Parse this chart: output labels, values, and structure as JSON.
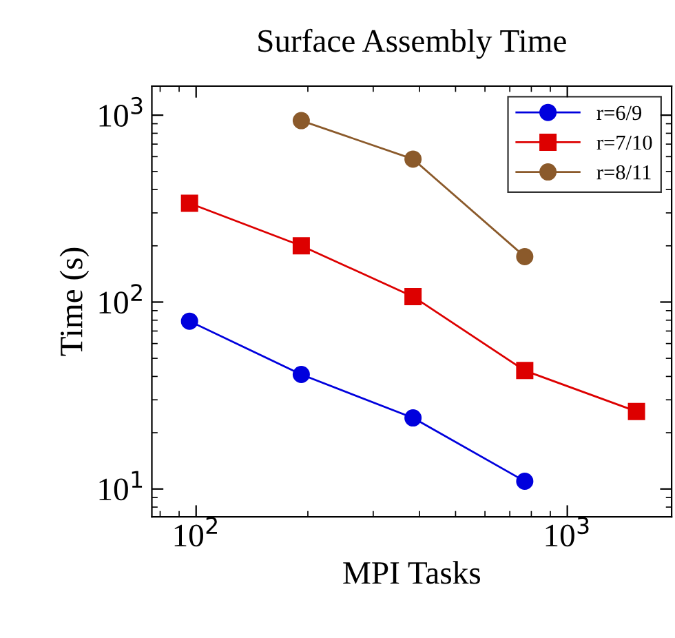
{
  "chart_data": {
    "type": "line",
    "title": "Surface Assembly Time",
    "xlabel": "MPI Tasks",
    "ylabel": "Time (s)",
    "log": "xy",
    "xlim": [
      76,
      1910
    ],
    "ylim": [
      7.1,
      1430
    ],
    "xticks": [
      {
        "value": 100,
        "label": "10$^{2}$"
      },
      {
        "value": 1000,
        "label": "10$^{3}$"
      }
    ],
    "yticks": [
      {
        "value": 10,
        "label": "10$^{1}$"
      },
      {
        "value": 100,
        "label": "10$^{2}$"
      },
      {
        "value": 1000,
        "label": "10$^{3}$"
      }
    ],
    "legend": "top right",
    "grid": false,
    "line_style": "solid",
    "series": [
      {
        "name": "r=6/9",
        "color": "#0000dd",
        "marker": "circle",
        "x": [
          96,
          192,
          384,
          768
        ],
        "values": [
          79,
          41,
          24,
          11
        ]
      },
      {
        "name": "r=7/10",
        "color": "#dd0000",
        "marker": "square",
        "x": [
          96,
          192,
          384,
          768,
          1536
        ],
        "values": [
          338,
          200,
          107,
          43,
          26
        ]
      },
      {
        "name": "r=8/11",
        "color": "#8b5a2b",
        "marker": "circle",
        "x": [
          192,
          384,
          768
        ],
        "values": [
          935,
          582,
          175
        ]
      }
    ]
  }
}
